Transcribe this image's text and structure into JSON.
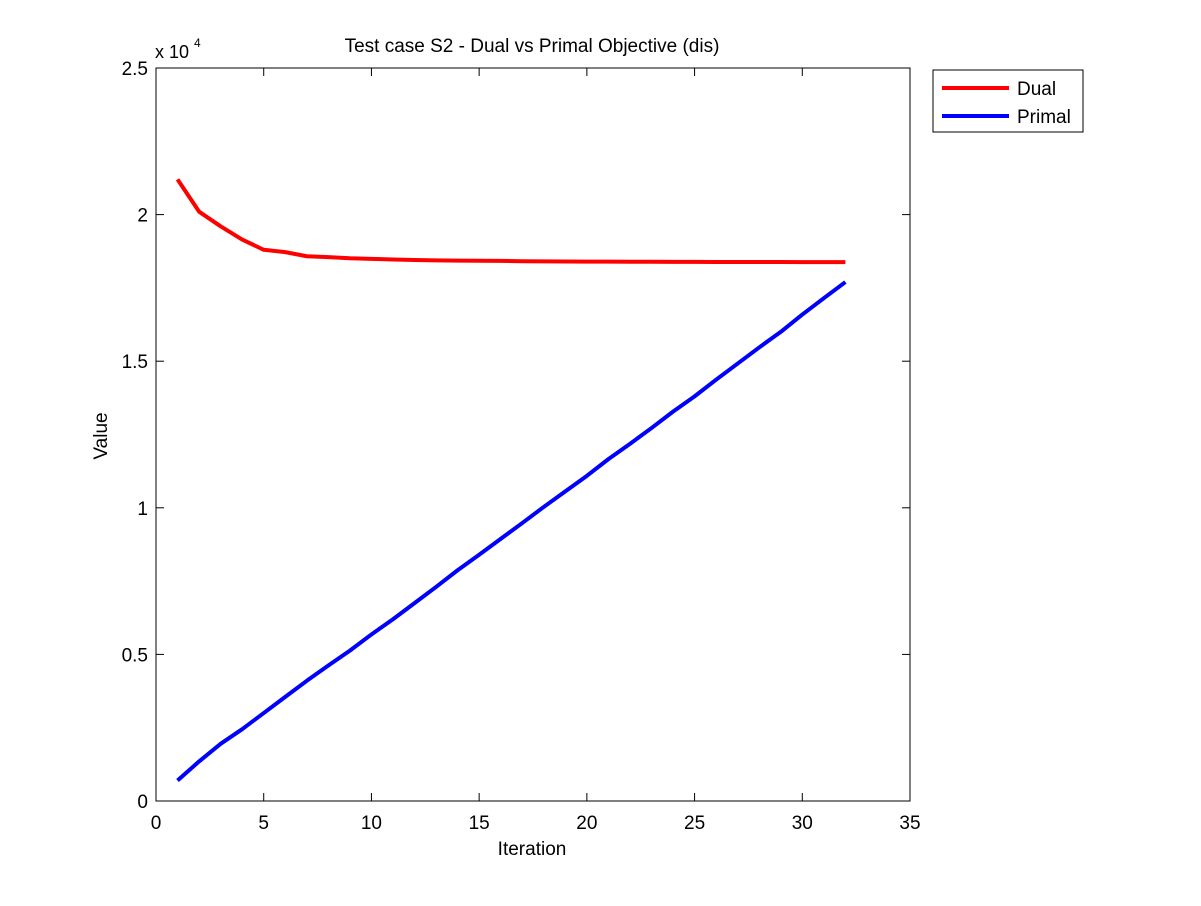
{
  "chart_data": {
    "type": "line",
    "title": "Test case S2 - Dual vs Primal Objective (dis)",
    "xlabel": "Iteration",
    "ylabel": "Value",
    "xlim": [
      0,
      35
    ],
    "ylim": [
      0,
      25000
    ],
    "xticks": [
      0,
      5,
      10,
      15,
      20,
      25,
      30,
      35
    ],
    "yticks": [
      0,
      5000,
      10000,
      15000,
      20000,
      25000
    ],
    "x_tick_labels": [
      "0",
      "5",
      "10",
      "15",
      "20",
      "25",
      "30",
      "35"
    ],
    "y_tick_labels": [
      "0",
      "0.5",
      "1",
      "1.5",
      "2",
      "2.5"
    ],
    "y_multiplier_base": "x 10",
    "y_multiplier_exponent": "4",
    "grid": false,
    "legend_position": "outside-top-right",
    "x": [
      1,
      2,
      3,
      4,
      5,
      6,
      7,
      8,
      9,
      10,
      11,
      12,
      13,
      14,
      15,
      16,
      17,
      18,
      19,
      20,
      21,
      22,
      23,
      24,
      25,
      26,
      27,
      28,
      29,
      30,
      31,
      32
    ],
    "series": [
      {
        "name": "Dual",
        "color": "#ff0000",
        "values": [
          21200,
          20100,
          19600,
          19150,
          18800,
          18720,
          18580,
          18550,
          18510,
          18490,
          18470,
          18450,
          18440,
          18430,
          18425,
          18420,
          18410,
          18405,
          18400,
          18398,
          18395,
          18392,
          18390,
          18388,
          18386,
          18385,
          18384,
          18383,
          18382,
          18381,
          18380,
          18380
        ]
      },
      {
        "name": "Primal",
        "color": "#0000ff",
        "values": [
          700,
          1350,
          1950,
          2450,
          3000,
          3550,
          4100,
          4620,
          5130,
          5680,
          6200,
          6750,
          7300,
          7870,
          8400,
          8940,
          9480,
          10030,
          10560,
          11090,
          11660,
          12180,
          12720,
          13280,
          13800,
          14370,
          14920,
          15470,
          16000,
          16590,
          17150,
          17700
        ]
      }
    ]
  }
}
